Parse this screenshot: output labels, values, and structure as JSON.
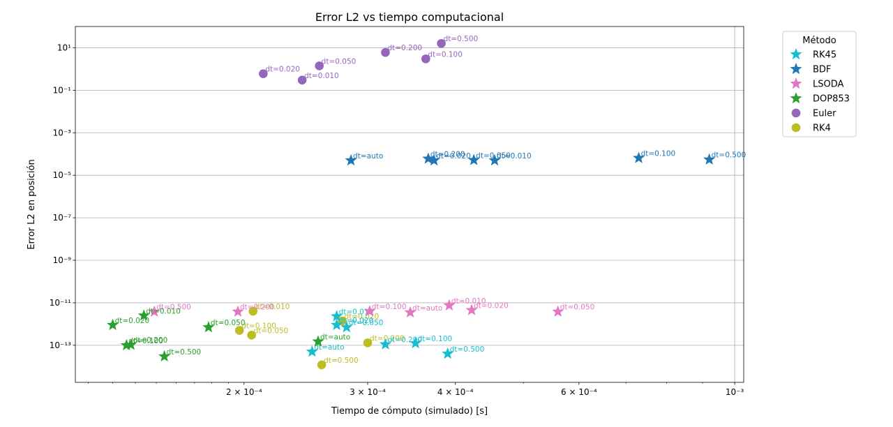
{
  "chart_data": {
    "type": "scatter",
    "title": "Error L2 vs tiempo computacional",
    "xlabel": "Tiempo de cómputo (simulado) [s]",
    "ylabel": "Error L2 en posición",
    "x_scale": "log",
    "y_scale": "log",
    "xlim": [
      0.000115,
      0.00103
    ],
    "ylim": [
      1.8e-15,
      100
    ],
    "x_ticks": [
      {
        "value": 0.0002,
        "label": "2 × 10⁻⁴"
      },
      {
        "value": 0.0003,
        "label": "3 × 10⁻⁴"
      },
      {
        "value": 0.0004,
        "label": "4 × 10⁻⁴"
      },
      {
        "value": 0.0006,
        "label": "6 × 10⁻⁴"
      },
      {
        "value": 0.001,
        "label": "10⁻³"
      }
    ],
    "x_minor_ticks": [
      0.00012,
      0.00013,
      0.00014,
      0.00015,
      0.00016,
      0.00017,
      0.00018,
      0.00019,
      0.0005,
      0.0007,
      0.0008,
      0.0009
    ],
    "y_ticks": [
      {
        "value": 10.0,
        "label": "10¹"
      },
      {
        "value": 0.1,
        "label": "10⁻¹"
      },
      {
        "value": 0.001,
        "label": "10⁻³"
      },
      {
        "value": 1e-05,
        "label": "10⁻⁵"
      },
      {
        "value": 1e-07,
        "label": "10⁻⁷"
      },
      {
        "value": 1e-09,
        "label": "10⁻⁹"
      },
      {
        "value": 1e-11,
        "label": "10⁻¹¹"
      },
      {
        "value": 1e-13,
        "label": "10⁻¹³"
      }
    ],
    "grid": "horizontal",
    "legend": {
      "title": "Método",
      "placement": "outside-right"
    },
    "series": [
      {
        "name": "RK45",
        "color": "#17becf",
        "marker": "star",
        "points": [
          {
            "x": 0.00025,
            "y": 5e-14,
            "label": "dt=auto"
          },
          {
            "x": 0.000271,
            "y": 2.3e-12,
            "label": "dt=0.010"
          },
          {
            "x": 0.000271,
            "y": 9e-13,
            "label": "dt=0.020"
          },
          {
            "x": 0.00028,
            "y": 7e-13,
            "label": "dt=0.050"
          },
          {
            "x": 0.000318,
            "y": 1.1e-13,
            "label": "dt=0.200"
          },
          {
            "x": 0.000351,
            "y": 1.25e-13,
            "label": "dt=0.100"
          },
          {
            "x": 0.00039,
            "y": 4e-14,
            "label": "dt=0.500"
          }
        ]
      },
      {
        "name": "BDF",
        "color": "#1f77b4",
        "marker": "star",
        "points": [
          {
            "x": 0.000284,
            "y": 5e-05,
            "label": "dt=auto"
          },
          {
            "x": 0.000366,
            "y": 6e-05,
            "label": "dt=0.200"
          },
          {
            "x": 0.000373,
            "y": 5e-05,
            "label": "dt=0.020"
          },
          {
            "x": 0.000425,
            "y": 5.2e-05,
            "label": "dt=0.050"
          },
          {
            "x": 0.000455,
            "y": 5e-05,
            "label": "dt=0.010"
          },
          {
            "x": 0.00073,
            "y": 6.5e-05,
            "label": "dt=0.100"
          },
          {
            "x": 0.00092,
            "y": 5.5e-05,
            "label": "dt=0.500"
          }
        ]
      },
      {
        "name": "LSODA",
        "color": "#e377c2",
        "marker": "star",
        "points": [
          {
            "x": 0.000345,
            "y": 3.5e-12,
            "label": "dt=auto"
          },
          {
            "x": 0.000149,
            "y": 3.8e-12,
            "label": "dt=0.500"
          },
          {
            "x": 0.000196,
            "y": 3.8e-12,
            "label": "dt=0.200"
          },
          {
            "x": 0.000302,
            "y": 4e-12,
            "label": "dt=0.100"
          },
          {
            "x": 0.000392,
            "y": 7.5e-12,
            "label": "dt=0.010"
          },
          {
            "x": 0.000422,
            "y": 4.5e-12,
            "label": "dt=0.020"
          },
          {
            "x": 0.00056,
            "y": 3.8e-12,
            "label": "dt=0.050"
          }
        ]
      },
      {
        "name": "DOP853",
        "color": "#2ca02c",
        "marker": "star",
        "points": [
          {
            "x": 0.000255,
            "y": 1.5e-13,
            "label": "dt=auto"
          },
          {
            "x": 0.00013,
            "y": 9e-13,
            "label": "dt=0.020"
          },
          {
            "x": 0.000144,
            "y": 2.5e-12,
            "label": "dt=0.010"
          },
          {
            "x": 0.000136,
            "y": 1e-13,
            "label": "dt=0.100"
          },
          {
            "x": 0.000138,
            "y": 1.05e-13,
            "label": "dt=0.200"
          },
          {
            "x": 0.000154,
            "y": 3e-14,
            "label": "dt=0.500"
          },
          {
            "x": 0.000178,
            "y": 7e-13,
            "label": "dt=0.050"
          }
        ]
      },
      {
        "name": "Euler",
        "color": "#9467bd",
        "marker": "circle",
        "points": [
          {
            "x": 0.000213,
            "y": 0.6,
            "label": "dt=0.020"
          },
          {
            "x": 0.000242,
            "y": 0.3,
            "label": "dt=0.010"
          },
          {
            "x": 0.000256,
            "y": 1.4,
            "label": "dt=0.050"
          },
          {
            "x": 0.000318,
            "y": 6,
            "label": "dt=0.200"
          },
          {
            "x": 0.000363,
            "y": 3,
            "label": "dt=0.100"
          },
          {
            "x": 0.000382,
            "y": 16,
            "label": "dt=0.500"
          }
        ]
      },
      {
        "name": "RK4",
        "color": "#bcbd22",
        "marker": "circle",
        "points": [
          {
            "x": 0.000206,
            "y": 4e-12,
            "label": "dt=0.010"
          },
          {
            "x": 0.000197,
            "y": 5e-13,
            "label": "dt=0.100"
          },
          {
            "x": 0.000205,
            "y": 3e-13,
            "label": "dt=0.050"
          },
          {
            "x": 0.000276,
            "y": 1.4e-12,
            "label": "dt=0.020"
          },
          {
            "x": 0.0003,
            "y": 1.3e-13,
            "label": "dt=0.200"
          },
          {
            "x": 0.000258,
            "y": 1.2e-14,
            "label": "dt=0.500"
          }
        ]
      }
    ]
  }
}
